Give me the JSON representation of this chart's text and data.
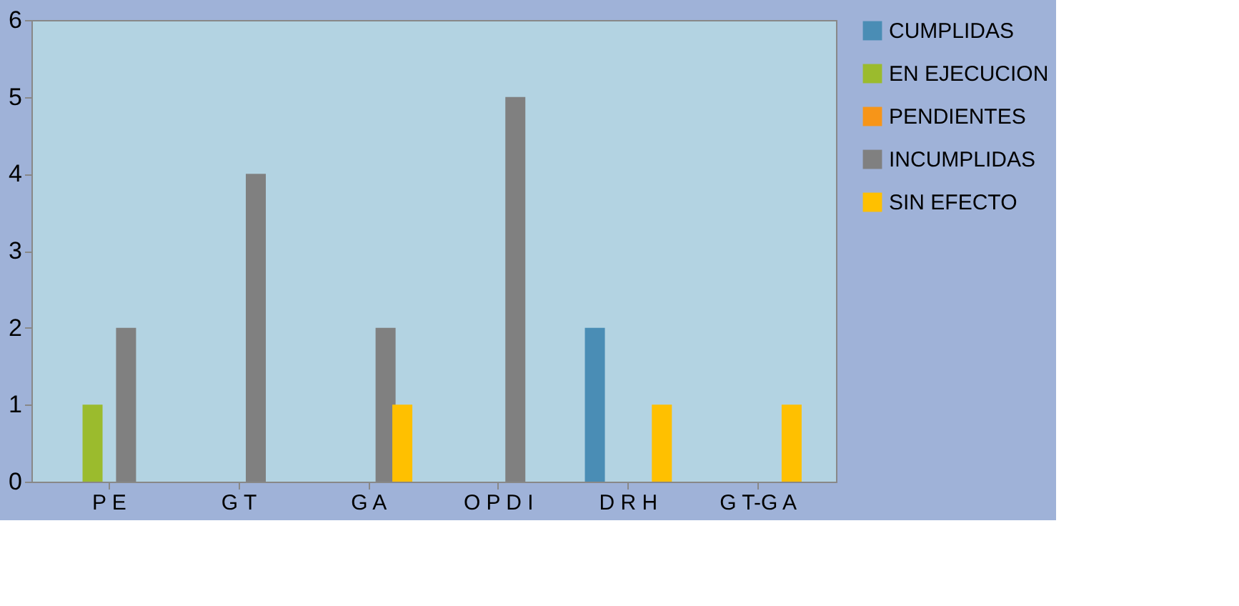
{
  "chart_data": {
    "type": "bar",
    "categories": [
      "P E",
      "G T",
      "G A",
      "O P D I",
      "D R H",
      "G T-G A"
    ],
    "series": [
      {
        "name": "CUMPLIDAS",
        "color": "#4a8db5",
        "values": [
          0,
          0,
          0,
          0,
          2,
          0
        ]
      },
      {
        "name": "EN EJECUCION",
        "color": "#9bbb2d",
        "values": [
          1,
          0,
          0,
          0,
          0,
          0
        ]
      },
      {
        "name": "PENDIENTES",
        "color": "#f79518",
        "values": [
          0,
          0,
          0,
          0,
          0,
          0
        ]
      },
      {
        "name": "INCUMPLIDAS",
        "color": "#808080",
        "values": [
          2,
          4,
          2,
          5,
          0,
          0
        ]
      },
      {
        "name": "SIN EFECTO",
        "color": "#ffc000",
        "values": [
          0,
          0,
          1,
          0,
          1,
          1
        ]
      }
    ],
    "ylim": [
      0,
      6
    ],
    "yticks": [
      0,
      1,
      2,
      3,
      4,
      5,
      6
    ],
    "grid": false,
    "legend": "right"
  }
}
